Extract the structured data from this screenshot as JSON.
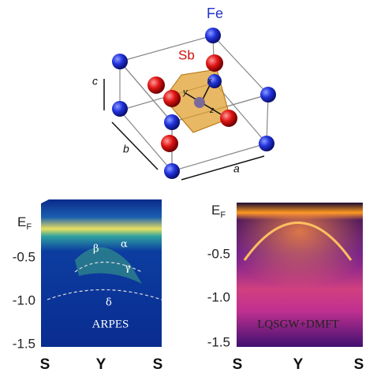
{
  "crystal": {
    "atoms": [
      "Fe",
      "Sb"
    ],
    "axes": [
      "c",
      "b",
      "a"
    ],
    "local_axes": [
      "x",
      "y",
      "z"
    ]
  },
  "panels": [
    {
      "energy_label": {
        "main": "E",
        "sub": "F"
      },
      "yticks": [
        "-0.5",
        "-1.0",
        "-1.5"
      ],
      "xticks": [
        "S",
        "Y",
        "S"
      ],
      "bands": [
        "α",
        "β",
        "γ",
        "δ"
      ],
      "label": "ARPES"
    },
    {
      "energy_label": {
        "main": "E",
        "sub": "F"
      },
      "yticks": [
        "-0.5",
        "-1.0",
        "-1.5"
      ],
      "xticks": [
        "S",
        "Y",
        "S"
      ],
      "label": "LQSGW+DMFT"
    }
  ]
}
